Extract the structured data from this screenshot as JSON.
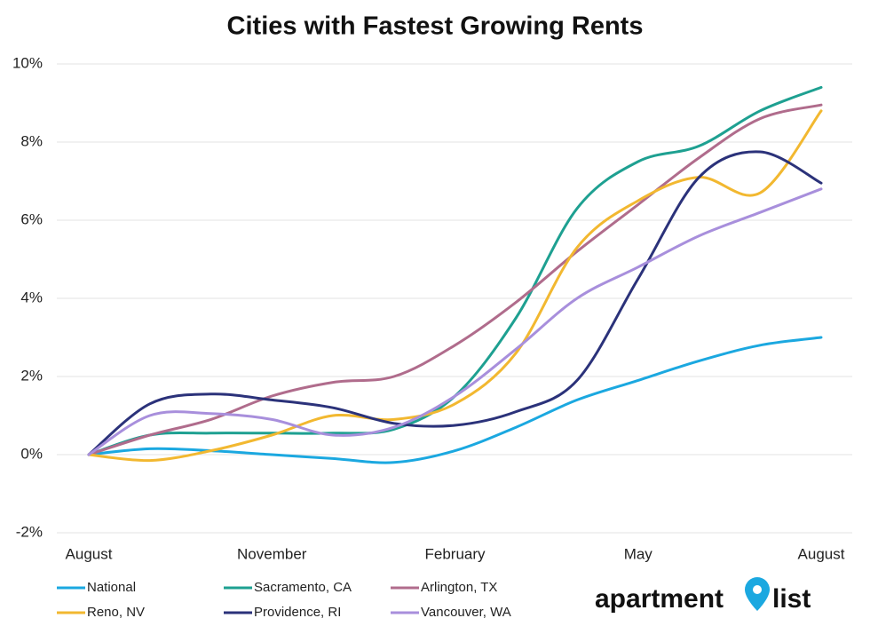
{
  "chart_data": {
    "type": "line",
    "title": "Cities with Fastest Growing Rents",
    "categories": [
      "August",
      null,
      null,
      "November",
      null,
      null,
      "February",
      null,
      null,
      "May",
      null,
      null,
      "August"
    ],
    "ylim": [
      -2,
      10
    ],
    "yticks": [
      {
        "value": -2,
        "label": "-2%"
      },
      {
        "value": 0,
        "label": "0%"
      },
      {
        "value": 2,
        "label": "2%"
      },
      {
        "value": 4,
        "label": "4%"
      },
      {
        "value": 6,
        "label": "6%"
      },
      {
        "value": 8,
        "label": "8%"
      },
      {
        "value": 10,
        "label": "10%"
      }
    ],
    "grid": true,
    "series": [
      {
        "name": "National",
        "color": "#1ba8e0",
        "values": [
          0,
          0.15,
          0.1,
          0.0,
          -0.1,
          -0.2,
          0.1,
          0.7,
          1.4,
          1.9,
          2.4,
          2.8,
          3.0
        ]
      },
      {
        "name": "Sacramento, CA",
        "color": "#1ea091",
        "values": [
          0,
          0.5,
          0.55,
          0.55,
          0.55,
          0.65,
          1.5,
          3.5,
          6.3,
          7.5,
          7.9,
          8.8,
          9.4
        ]
      },
      {
        "name": "Arlington, TX",
        "color": "#b06c8c",
        "values": [
          0,
          0.5,
          0.9,
          1.5,
          1.85,
          2.0,
          2.8,
          3.9,
          5.2,
          6.4,
          7.6,
          8.6,
          8.95
        ]
      },
      {
        "name": "Reno, NV",
        "color": "#f2b830",
        "values": [
          0,
          -0.15,
          0.1,
          0.5,
          1.0,
          0.9,
          1.3,
          2.6,
          5.3,
          6.5,
          7.1,
          6.7,
          8.8
        ]
      },
      {
        "name": "Providence, RI",
        "color": "#2b327a",
        "values": [
          0,
          1.3,
          1.55,
          1.4,
          1.2,
          0.8,
          0.75,
          1.1,
          1.9,
          4.5,
          7.1,
          7.75,
          6.95
        ]
      },
      {
        "name": "Vancouver, WA",
        "color": "#a88fdc",
        "values": [
          0,
          1.0,
          1.05,
          0.9,
          0.5,
          0.7,
          1.5,
          2.7,
          4.0,
          4.8,
          5.6,
          6.2,
          6.8
        ]
      }
    ]
  },
  "logo": {
    "word1": "apartment",
    "word2": "list"
  }
}
